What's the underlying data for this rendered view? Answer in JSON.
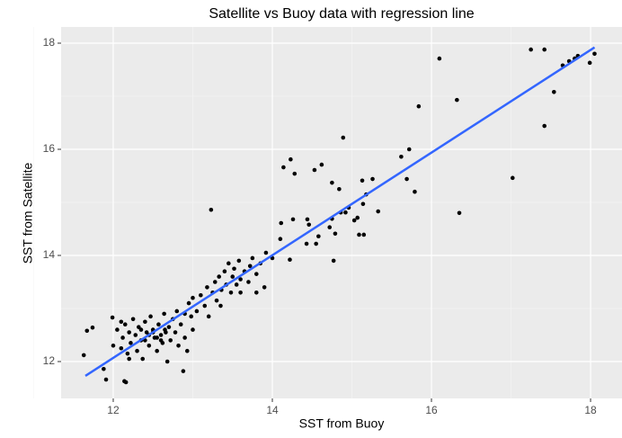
{
  "chart_data": {
    "type": "scatter",
    "title": "Satellite vs Buoy data with regression line",
    "x_label": "SST from Buoy",
    "y_label": "SST from Satellite",
    "xlim": [
      11.345,
      18.395
    ],
    "ylim": [
      11.305,
      18.305
    ],
    "xticks": [
      12,
      14,
      16,
      18
    ],
    "yticks": [
      12,
      14,
      16,
      18
    ],
    "grid": true,
    "series": [
      {
        "type": "scatter",
        "color": "#000000",
        "x": [
          11.63,
          11.67,
          11.74,
          11.88,
          11.91,
          11.99,
          12.14,
          12.16,
          13.23,
          14.89,
          16.1,
          15.84,
          16.32,
          16.35,
          17.02,
          17.25,
          17.42,
          17.42,
          17.54,
          17.65,
          17.73,
          17.8,
          17.84,
          17.99,
          18.05,
          14.14,
          14.23,
          14.28,
          14.53,
          14.62,
          14.75,
          14.84,
          15.13,
          15.26,
          15.62,
          15.72,
          15.69,
          15.79,
          15.33,
          14.92,
          14.96,
          14.11,
          14.26,
          14.44,
          14.46,
          14.72,
          14.75,
          14.79,
          15.03,
          15.07,
          15.09,
          15.15,
          15.18,
          15.14,
          14.58,
          14.43,
          14.55,
          14.1,
          14.22,
          14.77,
          14.86,
          12.0,
          12.05,
          12.1,
          12.12,
          12.15,
          12.18,
          12.2,
          12.22,
          12.25,
          12.28,
          12.3,
          12.32,
          12.35,
          12.37,
          12.4,
          12.42,
          12.45,
          12.47,
          12.5,
          12.52,
          12.55,
          12.57,
          12.6,
          12.62,
          12.64,
          12.66,
          12.68,
          12.7,
          12.72,
          12.75,
          12.78,
          12.8,
          12.82,
          12.85,
          12.88,
          12.9,
          12.93,
          12.95,
          12.98,
          13.0,
          13.05,
          13.1,
          13.15,
          13.18,
          13.2,
          13.25,
          13.28,
          13.3,
          13.33,
          13.36,
          13.4,
          13.42,
          13.45,
          13.48,
          13.5,
          13.52,
          13.55,
          13.58,
          13.6,
          13.65,
          13.7,
          13.72,
          13.75,
          13.8,
          13.85,
          13.9,
          13.92,
          14.0,
          12.45,
          12.55,
          12.6,
          12.5,
          12.65,
          12.4,
          12.35,
          13.0,
          12.9,
          12.2,
          12.1,
          13.35,
          13.6,
          13.8
        ],
        "values": [
          12.12,
          12.58,
          12.64,
          11.86,
          11.66,
          12.83,
          11.63,
          11.61,
          14.86,
          16.22,
          17.71,
          16.81,
          16.93,
          14.8,
          15.46,
          17.88,
          17.88,
          16.44,
          17.08,
          17.58,
          17.66,
          17.71,
          17.76,
          17.63,
          17.8,
          15.66,
          15.81,
          15.54,
          15.61,
          15.71,
          15.37,
          15.25,
          15.41,
          15.44,
          15.86,
          16.0,
          15.44,
          15.2,
          14.83,
          14.81,
          14.9,
          14.61,
          14.68,
          14.68,
          14.58,
          14.53,
          14.69,
          14.41,
          14.66,
          14.71,
          14.39,
          14.39,
          15.15,
          14.97,
          14.36,
          14.22,
          14.22,
          14.31,
          13.92,
          13.9,
          14.81,
          12.3,
          12.6,
          12.25,
          12.45,
          12.7,
          12.15,
          12.55,
          12.35,
          12.8,
          12.5,
          12.2,
          12.65,
          12.4,
          12.05,
          12.75,
          12.55,
          12.3,
          12.85,
          12.6,
          12.45,
          12.2,
          12.7,
          12.5,
          12.35,
          12.9,
          12.55,
          12.0,
          12.65,
          12.4,
          12.8,
          12.55,
          12.95,
          12.3,
          12.7,
          11.82,
          12.9,
          12.2,
          13.1,
          12.85,
          13.2,
          12.95,
          13.25,
          13.05,
          13.4,
          12.85,
          13.3,
          13.5,
          13.15,
          13.6,
          13.35,
          13.7,
          13.45,
          13.85,
          13.3,
          13.6,
          13.75,
          13.45,
          13.9,
          13.55,
          13.7,
          13.5,
          13.8,
          13.95,
          13.65,
          13.85,
          13.4,
          14.05,
          13.95,
          12.5,
          12.45,
          12.4,
          12.55,
          12.6,
          12.4,
          12.6,
          12.6,
          12.45,
          12.05,
          12.75,
          13.05,
          13.3,
          13.3
        ]
      },
      {
        "type": "line",
        "color": "#3366ff",
        "x": [
          11.65,
          18.05
        ],
        "values": [
          11.73,
          17.92
        ]
      }
    ]
  }
}
